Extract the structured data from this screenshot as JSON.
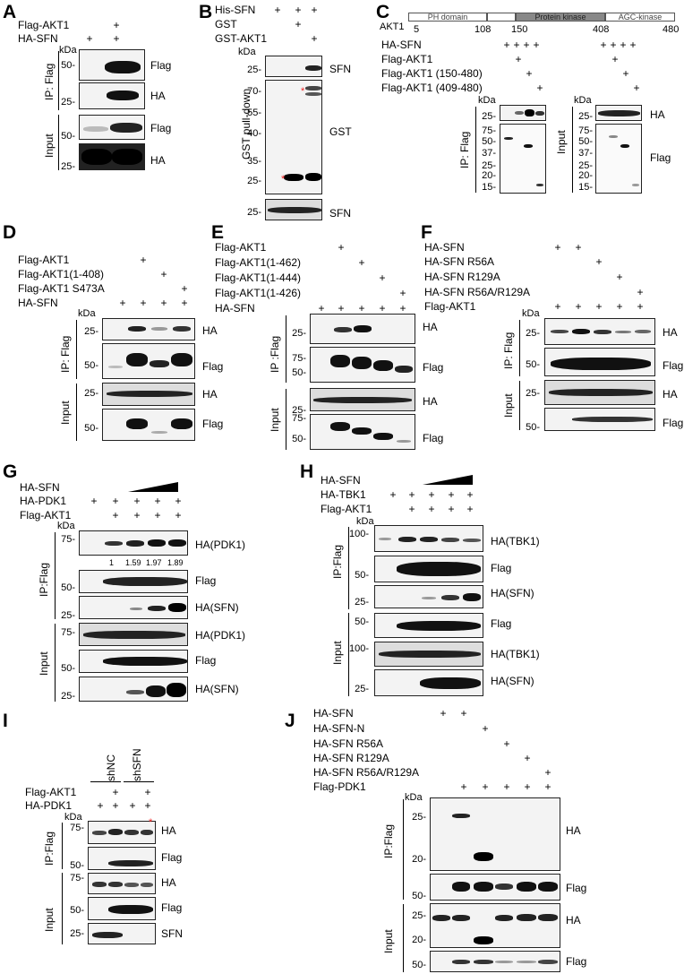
{
  "panels": {
    "A": {
      "letter": "A",
      "rows": [
        "Flag-AKT1",
        "HA-SFN"
      ],
      "marks": [
        [
          "",
          "+"
        ],
        [
          "+",
          "+"
        ]
      ],
      "kda": "kDa",
      "blots": [
        {
          "mw": [
            "50-"
          ],
          "label": "Flag"
        },
        {
          "mw": [
            "25-"
          ],
          "label": "HA"
        },
        {
          "mw": [
            "50-"
          ],
          "label": "Flag"
        },
        {
          "mw": [
            "25-"
          ],
          "label": "HA"
        }
      ],
      "groups": [
        "IP: Flag",
        "Input"
      ]
    },
    "B": {
      "letter": "B",
      "rows": [
        "His-SFN",
        "GST",
        "GST-AKT1"
      ],
      "marks": [
        [
          "+",
          "+",
          "+"
        ],
        [
          "",
          "+",
          ""
        ],
        [
          "",
          "",
          "+"
        ]
      ],
      "kda": "kDa",
      "top": {
        "mw": [
          "25-"
        ],
        "label": "SFN"
      },
      "mid": {
        "mw": [
          "70-",
          "55-",
          "40-",
          "35-",
          "25-"
        ],
        "label": "GST"
      },
      "bot": {
        "mw": [
          "25-"
        ],
        "label": "SFN"
      },
      "group": "GST pull-down"
    },
    "C": {
      "letter": "C",
      "protein": "AKT1",
      "domains": [
        "PH domain",
        "Protein kinase",
        "AGC-kinase"
      ],
      "positions": [
        "5",
        "108",
        "150",
        "408",
        "480"
      ],
      "rows": [
        "HA-SFN",
        "Flag-AKT1",
        "Flag-AKT1 (150-480)",
        "Flag-AKT1 (409-480)"
      ],
      "marks": [
        [
          "+",
          "+",
          "+",
          "+"
        ],
        [
          "",
          "+",
          "",
          ""
        ],
        [
          "",
          "",
          "+",
          ""
        ],
        [
          "",
          "",
          "",
          "+"
        ]
      ],
      "kda": "kDa",
      "mw_left": [
        "25-",
        "75-",
        "50-",
        "37-",
        "25-",
        "20-",
        "15-"
      ],
      "mw_right": [
        "25-",
        "75-",
        "50-",
        "37-",
        "25-",
        "20-",
        "15-"
      ],
      "labels": [
        "HA",
        "Flag"
      ],
      "groups": [
        "IP: Flag",
        "Input"
      ]
    },
    "D": {
      "letter": "D",
      "rows": [
        "Flag-AKT1",
        "Flag-AKT1(1-408)",
        "Flag-AKT1 S473A",
        "HA-SFN"
      ],
      "marks": [
        [
          "",
          "+",
          "",
          ""
        ],
        [
          "",
          "",
          "+",
          ""
        ],
        [
          "",
          "",
          "",
          "+"
        ],
        [
          "+",
          "+",
          "+",
          "+"
        ]
      ],
      "kda": "kDa",
      "blots": [
        {
          "mw": [
            "25-"
          ],
          "label": "HA"
        },
        {
          "mw": [
            "50-"
          ],
          "label": "Flag"
        },
        {
          "mw": [
            "25-"
          ],
          "label": "HA"
        },
        {
          "mw": [
            "50-"
          ],
          "label": "Flag"
        }
      ],
      "groups": [
        "IP: Flag",
        "Input"
      ]
    },
    "E": {
      "letter": "E",
      "rows": [
        "Flag-AKT1",
        "Flag-AKT1(1-462)",
        "Flag-AKT1(1-444)",
        "Flag-AKT1(1-426)",
        "HA-SFN"
      ],
      "marks": [
        [
          "",
          "+",
          "",
          "",
          ""
        ],
        [
          "",
          "",
          "+",
          "",
          ""
        ],
        [
          "",
          "",
          "",
          "+",
          ""
        ],
        [
          "",
          "",
          "",
          "",
          "+"
        ],
        [
          "+",
          "+",
          "+",
          "+",
          "+"
        ]
      ],
      "kda": "kDa",
      "blots": [
        {
          "mw": [
            "25-"
          ],
          "label": "HA"
        },
        {
          "mw": [
            "75-",
            "50-"
          ],
          "label": "Flag"
        },
        {
          "mw": [
            "25-"
          ],
          "label": "HA"
        },
        {
          "mw": [
            "75-",
            "50-"
          ],
          "label": "Flag"
        }
      ],
      "groups": [
        "IP :Flag",
        "Input"
      ]
    },
    "F": {
      "letter": "F",
      "rows": [
        "HA-SFN",
        "HA-SFN R56A",
        "HA-SFN R129A",
        "HA-SFN R56A/R129A",
        "Flag-AKT1"
      ],
      "marks": [
        [
          "+",
          "+",
          "",
          "",
          ""
        ],
        [
          "",
          "",
          "+",
          "",
          ""
        ],
        [
          "",
          "",
          "",
          "+",
          ""
        ],
        [
          "",
          "",
          "",
          "",
          "+"
        ],
        [
          "+",
          "+",
          "+",
          "+",
          "+"
        ]
      ],
      "kda": "kDa",
      "blots": [
        {
          "mw": [
            "25-"
          ],
          "label": "HA"
        },
        {
          "mw": [
            "50-"
          ],
          "label": "Flag"
        },
        {
          "mw": [
            "25-"
          ],
          "label": "HA"
        },
        {
          "mw": [
            "50-"
          ],
          "label": "Flag"
        }
      ],
      "groups": [
        "IP: Flag",
        "Input"
      ]
    },
    "G": {
      "letter": "G",
      "rows": [
        "HA-SFN",
        "HA-PDK1",
        "Flag-AKT1"
      ],
      "marks": [
        [
          "",
          "",
          "",
          "",
          ""
        ],
        [
          "+",
          "+",
          "+",
          "+",
          "+"
        ],
        [
          "",
          "+",
          "+",
          "+",
          "+"
        ]
      ],
      "kda": "kDa",
      "ratios": [
        "1",
        "1.59",
        "1.97",
        "1.89"
      ],
      "blots": [
        {
          "mw": [
            "75-"
          ],
          "label": "HA(PDK1)"
        },
        {
          "mw": [
            "50-"
          ],
          "label": "Flag"
        },
        {
          "mw": [
            "25-"
          ],
          "label": "HA(SFN)"
        },
        {
          "mw": [
            "75-"
          ],
          "label": "HA(PDK1)"
        },
        {
          "mw": [
            "50-"
          ],
          "label": "Flag"
        },
        {
          "mw": [
            "25-"
          ],
          "label": "HA(SFN)"
        }
      ],
      "groups": [
        "IP:Flag",
        "Input"
      ]
    },
    "H": {
      "letter": "H",
      "rows": [
        "HA-SFN",
        "HA-TBK1",
        "Flag-AKT1"
      ],
      "marks": [
        [
          "",
          "",
          "",
          "",
          ""
        ],
        [
          "+",
          "+",
          "+",
          "+",
          "+"
        ],
        [
          "",
          "+",
          "+",
          "+",
          "+"
        ]
      ],
      "kda": "kDa",
      "blots": [
        {
          "mw": [
            "100-"
          ],
          "label": "HA(TBK1)"
        },
        {
          "mw": [
            "50-"
          ],
          "label": "Flag"
        },
        {
          "mw": [
            "25-"
          ],
          "label": "HA(SFN)"
        },
        {
          "mw": [
            "50-"
          ],
          "label": "Flag"
        },
        {
          "mw": [
            "100-"
          ],
          "label": "HA(TBK1)"
        },
        {
          "mw": [
            "25-"
          ],
          "label": "HA(SFN)"
        }
      ],
      "groups": [
        "IP:Flag",
        "Input"
      ]
    },
    "I": {
      "letter": "I",
      "top": [
        "shNC",
        "shSFN"
      ],
      "rows": [
        "Flag-AKT1",
        "HA-PDK1"
      ],
      "marks": [
        [
          "",
          "+",
          "",
          "+"
        ],
        [
          "+",
          "+",
          "+",
          "+"
        ]
      ],
      "kda": "kDa",
      "blots": [
        {
          "mw": [
            "75-"
          ],
          "label": "HA"
        },
        {
          "mw": [
            "50-"
          ],
          "label": "Flag"
        },
        {
          "mw": [
            "75-"
          ],
          "label": "HA"
        },
        {
          "mw": [
            "50-"
          ],
          "label": "Flag"
        },
        {
          "mw": [
            "25-"
          ],
          "label": "SFN"
        }
      ],
      "groups": [
        "IP:Flag",
        "Input"
      ]
    },
    "J": {
      "letter": "J",
      "rows": [
        "HA-SFN",
        "HA-SFN-N",
        "HA-SFN R56A",
        "HA-SFN R129A",
        "HA-SFN R56A/R129A",
        "Flag-PDK1"
      ],
      "marks": [
        [
          "",
          "+",
          "+",
          "",
          "",
          ""
        ],
        [
          "",
          "",
          "",
          "+",
          "",
          ""
        ],
        [
          "",
          "",
          "",
          "",
          "+",
          ""
        ],
        [
          "",
          "",
          "",
          "",
          "",
          "+"
        ],
        [
          "",
          "",
          "",
          "",
          "",
          ""
        ],
        [
          "",
          "+",
          "+",
          "+",
          "+",
          "+"
        ]
      ],
      "kda": "kDa",
      "blots": [
        {
          "mw": [
            "25-",
            "20-"
          ],
          "label": "HA"
        },
        {
          "mw": [
            "50-"
          ],
          "label": "Flag"
        },
        {
          "mw": [
            "25-",
            "20-"
          ],
          "label": "HA"
        },
        {
          "mw": [
            "50-"
          ],
          "label": "Flag"
        }
      ],
      "groups": [
        "IP:Flag",
        "Input"
      ]
    }
  },
  "colors": {
    "band": "#111111",
    "blot_bg": "#f3f3f3",
    "asterisk": "#e22222"
  }
}
